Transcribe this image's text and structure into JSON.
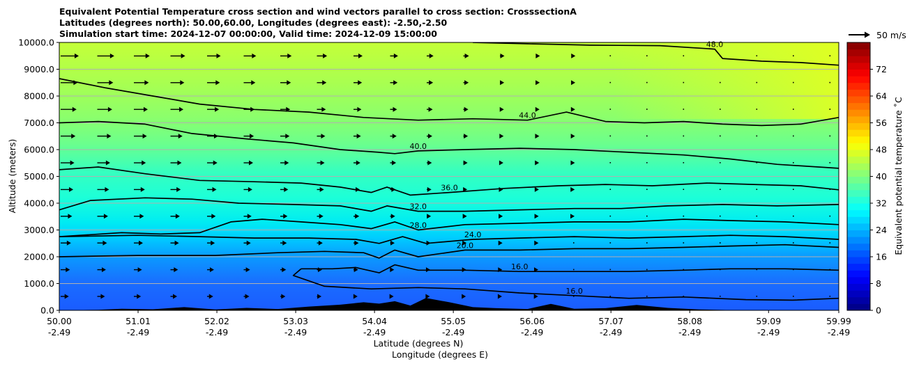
{
  "chart_data": {
    "type": "contour",
    "title_lines": [
      "Equivalent Potential Temperature cross section and wind vectors parallel to cross section: CrosssectionA",
      "Latitudes (degrees north): 50.00,60.00, Longitudes (degrees east): -2.50,-2.50",
      "Simulation start time: 2024-12-07 00:00:00, Valid time: 2024-12-09 15:00:00"
    ],
    "xlabel_lines": [
      "Latitude (degrees N)",
      "Longitude (degrees E)"
    ],
    "ylabel": "Altitude (meters)",
    "x_ticks": [
      {
        "lat": "50.00",
        "lon": "-2.49"
      },
      {
        "lat": "51.01",
        "lon": "-2.49"
      },
      {
        "lat": "52.02",
        "lon": "-2.49"
      },
      {
        "lat": "53.03",
        "lon": "-2.49"
      },
      {
        "lat": "54.04",
        "lon": "-2.49"
      },
      {
        "lat": "55.05",
        "lon": "-2.49"
      },
      {
        "lat": "56.06",
        "lon": "-2.49"
      },
      {
        "lat": "57.07",
        "lon": "-2.49"
      },
      {
        "lat": "58.08",
        "lon": "-2.49"
      },
      {
        "lat": "59.09",
        "lon": "-2.49"
      },
      {
        "lat": "59.99",
        "lon": "-2.49"
      }
    ],
    "xlim": [
      50.0,
      59.99
    ],
    "y_ticks": [
      "0.0",
      "1000.0",
      "2000.0",
      "3000.0",
      "4000.0",
      "5000.0",
      "6000.0",
      "7000.0",
      "8000.0",
      "9000.0",
      "10000.0"
    ],
    "ylim": [
      0,
      10000
    ],
    "grid": "horizontal",
    "colorbar": {
      "label": "Equivalent potential temperature ˚C",
      "ticks": [
        "0",
        "8",
        "16",
        "24",
        "32",
        "40",
        "48",
        "56",
        "64",
        "72"
      ],
      "range": [
        0,
        80
      ],
      "colormap": "jet"
    },
    "quiver_key": "50 m/s",
    "contour_labels": [
      "48.0",
      "44.0",
      "40.0",
      "36.0",
      "32.0",
      "28.0",
      "24.0",
      "20.0",
      "16.0"
    ],
    "isotherms": [
      {
        "label": "48.0",
        "points": [
          [
            55.3,
            10000
          ],
          [
            56.0,
            9950
          ],
          [
            56.8,
            9900
          ],
          [
            57.7,
            9880
          ],
          [
            58.4,
            9750
          ],
          [
            58.5,
            9400
          ],
          [
            59.0,
            9300
          ],
          [
            59.5,
            9250
          ],
          [
            59.99,
            9150
          ]
        ]
      },
      {
        "label": "44.0",
        "points": [
          [
            50.0,
            8650
          ],
          [
            50.6,
            8300
          ],
          [
            51.2,
            8000
          ],
          [
            51.8,
            7700
          ],
          [
            52.5,
            7500
          ],
          [
            53.2,
            7400
          ],
          [
            53.9,
            7200
          ],
          [
            54.6,
            7100
          ],
          [
            55.3,
            7150
          ],
          [
            56.0,
            7100
          ],
          [
            56.5,
            7400
          ],
          [
            57.0,
            7050
          ],
          [
            57.5,
            7000
          ],
          [
            58.0,
            7050
          ],
          [
            58.5,
            6950
          ],
          [
            59.0,
            6900
          ],
          [
            59.5,
            6950
          ],
          [
            59.99,
            7200
          ]
        ]
      },
      {
        "label": "40.0",
        "points": [
          [
            50.0,
            7000
          ],
          [
            50.5,
            7050
          ],
          [
            51.1,
            6950
          ],
          [
            51.7,
            6600
          ],
          [
            52.4,
            6400
          ],
          [
            53.0,
            6250
          ],
          [
            53.6,
            6000
          ],
          [
            54.1,
            5900
          ],
          [
            54.3,
            5850
          ],
          [
            54.6,
            5950
          ],
          [
            55.2,
            6000
          ],
          [
            55.9,
            6050
          ],
          [
            56.6,
            6000
          ],
          [
            57.3,
            5900
          ],
          [
            58.0,
            5800
          ],
          [
            58.6,
            5650
          ],
          [
            59.2,
            5450
          ],
          [
            59.99,
            5300
          ]
        ]
      },
      {
        "label": "36.0",
        "points": [
          [
            50.0,
            5250
          ],
          [
            50.5,
            5350
          ],
          [
            51.1,
            5100
          ],
          [
            51.8,
            4850
          ],
          [
            52.5,
            4800
          ],
          [
            53.1,
            4750
          ],
          [
            53.6,
            4600
          ],
          [
            54.0,
            4400
          ],
          [
            54.2,
            4600
          ],
          [
            54.5,
            4300
          ],
          [
            55.0,
            4400
          ],
          [
            55.7,
            4550
          ],
          [
            56.4,
            4650
          ],
          [
            57.0,
            4700
          ],
          [
            57.6,
            4650
          ],
          [
            58.3,
            4750
          ],
          [
            58.9,
            4700
          ],
          [
            59.5,
            4650
          ],
          [
            59.99,
            4500
          ]
        ]
      },
      {
        "label": "32.0",
        "points": [
          [
            50.0,
            3750
          ],
          [
            50.4,
            4100
          ],
          [
            51.1,
            4200
          ],
          [
            51.7,
            4150
          ],
          [
            52.3,
            4000
          ],
          [
            53.0,
            3950
          ],
          [
            53.6,
            3900
          ],
          [
            54.0,
            3700
          ],
          [
            54.2,
            3900
          ],
          [
            54.6,
            3700
          ],
          [
            55.2,
            3700
          ],
          [
            55.9,
            3750
          ],
          [
            56.6,
            3800
          ],
          [
            57.2,
            3800
          ],
          [
            57.8,
            3900
          ],
          [
            58.5,
            3950
          ],
          [
            59.2,
            3900
          ],
          [
            59.99,
            3950
          ]
        ]
      },
      {
        "label": "28.0",
        "points": [
          [
            50.0,
            2750
          ],
          [
            50.8,
            2900
          ],
          [
            51.3,
            2850
          ],
          [
            51.8,
            2900
          ],
          [
            52.2,
            3300
          ],
          [
            52.6,
            3400
          ],
          [
            53.1,
            3300
          ],
          [
            53.6,
            3200
          ],
          [
            54.0,
            3050
          ],
          [
            54.3,
            3300
          ],
          [
            54.6,
            3000
          ],
          [
            55.2,
            3200
          ],
          [
            55.9,
            3250
          ],
          [
            56.6,
            3300
          ],
          [
            57.3,
            3300
          ],
          [
            58.0,
            3400
          ],
          [
            58.6,
            3350
          ],
          [
            59.3,
            3300
          ],
          [
            59.99,
            3200
          ]
        ]
      },
      {
        "label": "24.0",
        "points": [
          [
            50.0,
            2750
          ],
          [
            51.0,
            2800
          ],
          [
            51.8,
            2750
          ],
          [
            52.5,
            2700
          ],
          [
            53.2,
            2700
          ],
          [
            53.8,
            2650
          ],
          [
            54.1,
            2500
          ],
          [
            54.4,
            2750
          ],
          [
            54.7,
            2500
          ],
          [
            55.3,
            2650
          ],
          [
            55.9,
            2700
          ],
          [
            56.6,
            2750
          ],
          [
            57.3,
            2700
          ],
          [
            58.0,
            2750
          ],
          [
            58.6,
            2800
          ],
          [
            59.3,
            2750
          ],
          [
            59.99,
            2650
          ]
        ]
      },
      {
        "label": "20.0",
        "points": [
          [
            50.0,
            2000
          ],
          [
            51.0,
            2050
          ],
          [
            52.0,
            2050
          ],
          [
            52.8,
            2150
          ],
          [
            53.4,
            2200
          ],
          [
            53.9,
            2150
          ],
          [
            54.1,
            1950
          ],
          [
            54.3,
            2250
          ],
          [
            54.6,
            2000
          ],
          [
            55.2,
            2250
          ],
          [
            55.9,
            2250
          ],
          [
            56.6,
            2300
          ],
          [
            57.3,
            2300
          ],
          [
            58.0,
            2350
          ],
          [
            58.6,
            2400
          ],
          [
            59.3,
            2450
          ],
          [
            59.99,
            2350
          ]
        ]
      },
      {
        "label": "16.0",
        "points": [
          [
            53.1,
            1550
          ],
          [
            53.5,
            1550
          ],
          [
            53.8,
            1600
          ],
          [
            54.1,
            1400
          ],
          [
            54.3,
            1700
          ],
          [
            54.6,
            1500
          ],
          [
            55.2,
            1500
          ],
          [
            55.9,
            1450
          ],
          [
            56.6,
            1450
          ],
          [
            57.3,
            1450
          ],
          [
            58.0,
            1500
          ],
          [
            58.6,
            1550
          ],
          [
            59.3,
            1550
          ],
          [
            59.99,
            1500
          ]
        ]
      },
      {
        "label": "16.0",
        "points": [
          [
            53.1,
            1550
          ],
          [
            53.0,
            1300
          ],
          [
            53.4,
            900
          ],
          [
            54.0,
            800
          ],
          [
            54.6,
            850
          ],
          [
            55.2,
            800
          ],
          [
            55.9,
            650
          ],
          [
            56.6,
            550
          ],
          [
            57.3,
            450
          ],
          [
            58.0,
            500
          ],
          [
            58.8,
            400
          ],
          [
            59.4,
            380
          ],
          [
            59.99,
            450
          ]
        ]
      }
    ]
  }
}
